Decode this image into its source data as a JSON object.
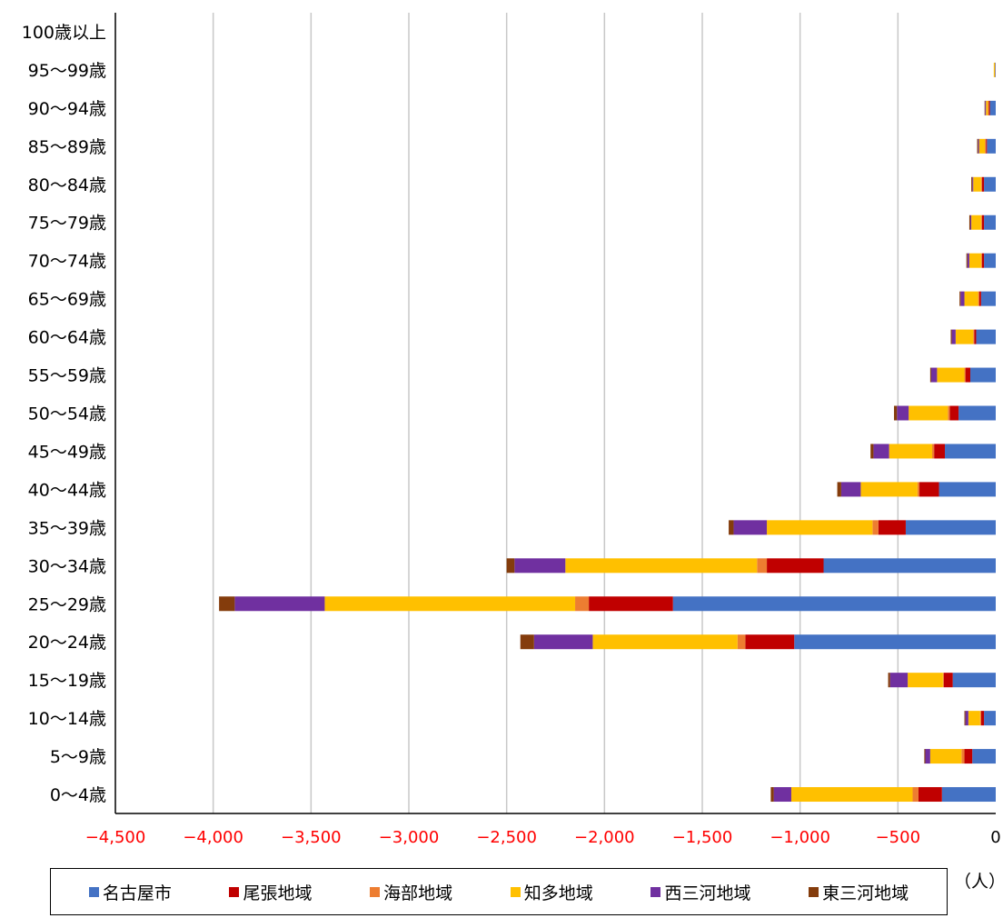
{
  "chart_data": {
    "type": "bar",
    "orientation": "horizontal",
    "stacked": true,
    "categories": [
      "100歳以上",
      "95〜99歳",
      "90〜94歳",
      "85〜89歳",
      "80〜84歳",
      "75〜79歳",
      "70〜74歳",
      "65〜69歳",
      "60〜64歳",
      "55〜59歳",
      "50〜54歳",
      "45〜49歳",
      "40〜44歳",
      "35〜39歳",
      "30〜34歳",
      "25〜29歳",
      "20〜24歳",
      "15〜19歳",
      "10〜14歳",
      "5〜9歳",
      "0〜4歳"
    ],
    "series": [
      {
        "name": "名古屋市",
        "color": "#4472C4",
        "values": [
          0,
          -3,
          -30,
          -45,
          -60,
          -60,
          -60,
          -75,
          -100,
          -130,
          -190,
          -260,
          -290,
          -460,
          -880,
          -1650,
          -1030,
          -220,
          -60,
          -120,
          -275
        ]
      },
      {
        "name": "尾張地域",
        "color": "#C00000",
        "values": [
          0,
          0,
          -5,
          -5,
          -10,
          -10,
          -10,
          -10,
          -10,
          -25,
          -45,
          -55,
          -100,
          -140,
          -290,
          -430,
          -250,
          -45,
          -15,
          -40,
          -120
        ]
      },
      {
        "name": "海部地域",
        "color": "#ED7D31",
        "values": [
          0,
          -2,
          -5,
          -5,
          -5,
          -5,
          -5,
          -5,
          -5,
          -5,
          -10,
          -10,
          -10,
          -30,
          -50,
          -70,
          -40,
          -5,
          -5,
          -15,
          -30
        ]
      },
      {
        "name": "知多地域",
        "color": "#FFC000",
        "values": [
          0,
          -5,
          -10,
          -30,
          -40,
          -50,
          -60,
          -70,
          -90,
          -140,
          -200,
          -220,
          -290,
          -540,
          -980,
          -1280,
          -740,
          -180,
          -60,
          -160,
          -620
        ]
      },
      {
        "name": "西三河地域",
        "color": "#7030A0",
        "values": [
          0,
          0,
          -5,
          -5,
          -5,
          -5,
          -10,
          -20,
          -20,
          -30,
          -60,
          -80,
          -100,
          -170,
          -260,
          -460,
          -300,
          -90,
          -15,
          -25,
          -90
        ]
      },
      {
        "name": "東三河地域",
        "color": "#843C0C",
        "values": [
          0,
          0,
          -2,
          -5,
          -5,
          -5,
          -5,
          -5,
          -5,
          -5,
          -15,
          -15,
          -20,
          -25,
          -40,
          -80,
          -70,
          -10,
          -5,
          -5,
          -15
        ]
      }
    ],
    "xlim": [
      -4500,
      0
    ],
    "xticks": [
      -4500,
      -4000,
      -3500,
      -3000,
      -2500,
      -2000,
      -1500,
      -1000,
      -500,
      0
    ],
    "xtick_labels": [
      "−4,500",
      "−4,000",
      "−3,500",
      "−3,000",
      "−2,500",
      "−2,000",
      "−1,500",
      "−1,000",
      "−500",
      "0"
    ],
    "negative_tick_color": "#FF0000",
    "grid": "vertical",
    "legend_position": "bottom",
    "unit_label": "（人）"
  }
}
